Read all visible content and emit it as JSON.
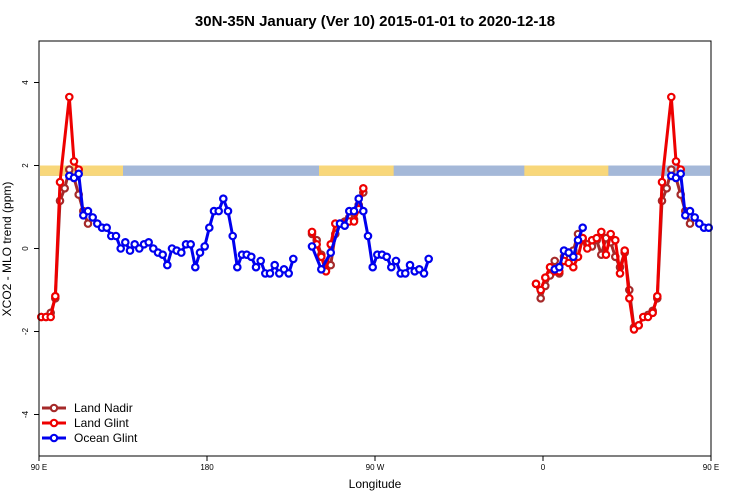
{
  "chart_data": {
    "type": "line",
    "title": "30N-35N January (Ver 10)   2015-01-01 to 2020-12-18",
    "xlabel": "Longitude",
    "ylabel": "XCO2 - MLO trend (ppm)",
    "xlim": [
      90,
      450
    ],
    "ylim": [
      -5,
      5
    ],
    "x_ticks": [
      {
        "value": 90,
        "label": "90 E"
      },
      {
        "value": 180,
        "label": "180"
      },
      {
        "value": 270,
        "label": "90 W"
      },
      {
        "value": 360,
        "label": "0"
      },
      {
        "value": 450,
        "label": "90 E"
      },
      {
        "value": 540,
        "label": "180"
      }
    ],
    "y_ticks": [
      {
        "value": -4,
        "label": "-4"
      },
      {
        "value": -2,
        "label": "-2"
      },
      {
        "value": 0,
        "label": "0"
      },
      {
        "value": 2,
        "label": "2"
      },
      {
        "value": 4,
        "label": "4"
      }
    ],
    "grid": false,
    "legend_position": "bottom-left",
    "land_ocean_band": {
      "y_range": [
        1.75,
        2.0
      ],
      "ocean_color": "#a4b8d8",
      "land_color": "#f8d77a",
      "land_ranges": [
        [
          90,
          135
        ],
        [
          240,
          280
        ],
        [
          350,
          395
        ],
        [
          450,
          495
        ]
      ]
    },
    "series": [
      {
        "name": "Land Nadir",
        "color": "#a52a2a",
        "points": [
          [
            91.25,
            -1.65
          ],
          [
            93.75,
            -1.65
          ],
          [
            96.25,
            -1.55
          ],
          [
            98.75,
            -1.2
          ],
          [
            101.25,
            1.15
          ],
          [
            103.75,
            1.45
          ],
          [
            106.25,
            1.9
          ],
          [
            108.75,
            1.7
          ],
          [
            111.25,
            1.3
          ],
          [
            113.75,
            0.9
          ],
          [
            116.25,
            0.6
          ],
          [
            236.25,
            0.35
          ],
          [
            238.75,
            0.2
          ],
          [
            241.25,
            -0.15
          ],
          [
            243.75,
            -0.5
          ],
          [
            246.25,
            -0.4
          ],
          [
            248.75,
            0.35
          ],
          [
            251.25,
            0.6
          ],
          [
            253.75,
            0.65
          ],
          [
            256.25,
            0.75
          ],
          [
            258.75,
            0.7
          ],
          [
            261.25,
            1.05
          ],
          [
            263.75,
            1.35
          ],
          [
            356.25,
            -0.85
          ],
          [
            358.75,
            -1.2
          ],
          [
            361.25,
            -0.9
          ],
          [
            363.75,
            -0.65
          ],
          [
            366.25,
            -0.3
          ],
          [
            368.75,
            -0.6
          ],
          [
            371.25,
            -0.2
          ],
          [
            373.75,
            -0.1
          ],
          [
            376.25,
            -0.05
          ],
          [
            378.75,
            0.35
          ],
          [
            381.25,
            0.2
          ],
          [
            383.75,
            0.1
          ],
          [
            386.25,
            0.05
          ],
          [
            388.75,
            0.2
          ],
          [
            391.25,
            -0.15
          ],
          [
            393.75,
            0.25
          ],
          [
            396.25,
            0.15
          ],
          [
            398.75,
            -0.2
          ],
          [
            401.25,
            -0.45
          ],
          [
            403.75,
            -0.1
          ],
          [
            406.25,
            -1.0
          ],
          [
            408.75,
            -1.9
          ],
          [
            411.25,
            -1.85
          ],
          [
            413.75,
            -1.65
          ],
          [
            416.25,
            -1.6
          ],
          [
            418.75,
            -1.5
          ],
          [
            421.25,
            -1.2
          ],
          [
            423.75,
            1.15
          ],
          [
            426.25,
            1.45
          ],
          [
            428.75,
            1.9
          ],
          [
            431.25,
            1.7
          ],
          [
            433.75,
            1.3
          ],
          [
            436.25,
            0.9
          ],
          [
            438.75,
            0.6
          ]
        ]
      },
      {
        "name": "Land Glint",
        "color": "#ee0000",
        "points": [
          [
            91.25,
            -1.65
          ],
          [
            93.75,
            -1.65
          ],
          [
            96.25,
            -1.65
          ],
          [
            98.75,
            -1.15
          ],
          [
            101.25,
            1.6
          ],
          [
            106.25,
            3.65
          ],
          [
            108.75,
            2.1
          ],
          [
            111.25,
            1.9
          ],
          [
            236.25,
            0.4
          ],
          [
            238.75,
            0.1
          ],
          [
            241.25,
            -0.2
          ],
          [
            243.75,
            -0.55
          ],
          [
            246.25,
            0.1
          ],
          [
            248.75,
            0.6
          ],
          [
            253.75,
            0.6
          ],
          [
            256.25,
            0.65
          ],
          [
            258.75,
            0.65
          ],
          [
            261.25,
            0.95
          ],
          [
            263.75,
            1.45
          ],
          [
            356.25,
            -0.85
          ],
          [
            358.75,
            -1.0
          ],
          [
            361.25,
            -0.7
          ],
          [
            363.75,
            -0.45
          ],
          [
            366.25,
            -0.55
          ],
          [
            368.75,
            -0.55
          ],
          [
            371.25,
            -0.3
          ],
          [
            373.75,
            -0.35
          ],
          [
            376.25,
            -0.45
          ],
          [
            378.75,
            -0.2
          ],
          [
            381.25,
            0.25
          ],
          [
            383.75,
            0.0
          ],
          [
            386.25,
            0.2
          ],
          [
            388.75,
            0.25
          ],
          [
            391.25,
            0.4
          ],
          [
            393.75,
            -0.15
          ],
          [
            396.25,
            0.35
          ],
          [
            398.75,
            0.2
          ],
          [
            401.25,
            -0.6
          ],
          [
            403.75,
            -0.05
          ],
          [
            406.25,
            -1.2
          ],
          [
            408.75,
            -1.95
          ],
          [
            411.25,
            -1.85
          ],
          [
            413.75,
            -1.65
          ],
          [
            416.25,
            -1.65
          ],
          [
            418.75,
            -1.55
          ],
          [
            421.25,
            -1.15
          ],
          [
            423.75,
            1.6
          ],
          [
            428.75,
            3.65
          ],
          [
            431.25,
            2.1
          ],
          [
            433.75,
            1.9
          ]
        ]
      },
      {
        "name": "Ocean Glint",
        "color": "#0000ee",
        "points": [
          [
            106.25,
            1.75
          ],
          [
            108.75,
            1.7
          ],
          [
            111.25,
            1.8
          ],
          [
            113.75,
            0.8
          ],
          [
            116.25,
            0.9
          ],
          [
            118.75,
            0.75
          ],
          [
            121.25,
            0.6
          ],
          [
            123.75,
            0.5
          ],
          [
            126.25,
            0.5
          ],
          [
            128.75,
            0.3
          ],
          [
            131.25,
            0.3
          ],
          [
            133.75,
            0.0
          ],
          [
            136.25,
            0.15
          ],
          [
            138.75,
            -0.05
          ],
          [
            141.25,
            0.1
          ],
          [
            143.75,
            0.0
          ],
          [
            146.25,
            0.1
          ],
          [
            148.75,
            0.15
          ],
          [
            151.25,
            0.0
          ],
          [
            153.75,
            -0.1
          ],
          [
            156.25,
            -0.15
          ],
          [
            158.75,
            -0.4
          ],
          [
            161.25,
            0.0
          ],
          [
            163.75,
            -0.05
          ],
          [
            166.25,
            -0.1
          ],
          [
            168.75,
            0.1
          ],
          [
            171.25,
            0.1
          ],
          [
            173.75,
            -0.45
          ],
          [
            176.25,
            -0.1
          ],
          [
            178.75,
            0.05
          ],
          [
            181.25,
            0.5
          ],
          [
            183.75,
            0.9
          ],
          [
            186.25,
            0.9
          ],
          [
            188.75,
            1.2
          ],
          [
            191.25,
            0.9
          ],
          [
            193.75,
            0.3
          ],
          [
            196.25,
            -0.45
          ],
          [
            198.75,
            -0.15
          ],
          [
            201.25,
            -0.15
          ],
          [
            203.75,
            -0.2
          ],
          [
            206.25,
            -0.45
          ],
          [
            208.75,
            -0.3
          ],
          [
            211.25,
            -0.6
          ],
          [
            213.75,
            -0.6
          ],
          [
            216.25,
            -0.4
          ],
          [
            218.75,
            -0.6
          ],
          [
            221.25,
            -0.5
          ],
          [
            223.75,
            -0.6
          ],
          [
            226.25,
            -0.25
          ],
          [
            236.25,
            0.05
          ],
          [
            241.25,
            -0.5
          ],
          [
            246.25,
            -0.1
          ],
          [
            251.25,
            0.6
          ],
          [
            253.75,
            0.55
          ],
          [
            256.25,
            0.9
          ],
          [
            258.75,
            0.9
          ],
          [
            261.25,
            1.2
          ],
          [
            263.75,
            0.9
          ],
          [
            266.25,
            0.3
          ],
          [
            268.75,
            -0.45
          ],
          [
            271.25,
            -0.15
          ],
          [
            273.75,
            -0.15
          ],
          [
            276.25,
            -0.2
          ],
          [
            278.75,
            -0.45
          ],
          [
            281.25,
            -0.3
          ],
          [
            283.75,
            -0.6
          ],
          [
            286.25,
            -0.6
          ],
          [
            288.75,
            -0.4
          ],
          [
            291.25,
            -0.55
          ],
          [
            293.75,
            -0.5
          ],
          [
            296.25,
            -0.6
          ],
          [
            298.75,
            -0.25
          ],
          [
            366.25,
            -0.5
          ],
          [
            368.75,
            -0.45
          ],
          [
            371.25,
            -0.05
          ],
          [
            373.75,
            -0.1
          ],
          [
            376.25,
            -0.2
          ],
          [
            378.75,
            0.2
          ],
          [
            381.25,
            0.5
          ],
          [
            428.75,
            1.75
          ],
          [
            431.25,
            1.7
          ],
          [
            433.75,
            1.8
          ],
          [
            436.25,
            0.8
          ],
          [
            438.75,
            0.9
          ],
          [
            441.25,
            0.75
          ],
          [
            443.75,
            0.6
          ],
          [
            446.25,
            0.5
          ],
          [
            448.75,
            0.5
          ],
          [
            451.25,
            0.3
          ],
          [
            453.75,
            0.3
          ],
          [
            456.25,
            0.0
          ],
          [
            458.75,
            0.15
          ]
        ]
      }
    ]
  }
}
